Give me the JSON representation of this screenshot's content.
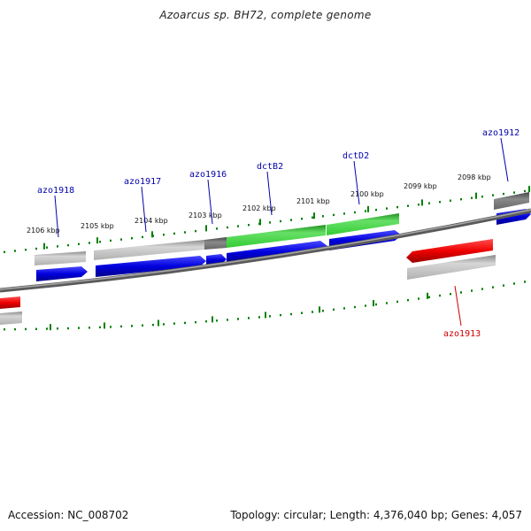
{
  "title": "Azoarcus sp. BH72, complete genome",
  "footer": {
    "accession": "Accession: NC_008702",
    "summary": "Topology: circular; Length: 4,376,040 bp; Genes: 4,057"
  },
  "colors": {
    "forward_gene": "#0000dd",
    "reverse_gene": "#ee0000",
    "green_feature": "#33cc33",
    "grey_feature": "#b0b0b0",
    "dark_grey_feature": "#707070",
    "tick": "#008000",
    "backbone": "#8a8a8a",
    "forward_label": "#0000aa",
    "reverse_label": "#cc0000"
  },
  "kbp_ticks": [
    {
      "label": "2106 kbp"
    },
    {
      "label": "2105 kbp"
    },
    {
      "label": "2104 kbp"
    },
    {
      "label": "2103 kbp"
    },
    {
      "label": "2102 kbp"
    },
    {
      "label": "2101 kbp"
    },
    {
      "label": "2100 kbp"
    },
    {
      "label": "2099 kbp"
    },
    {
      "label": "2098 kbp"
    }
  ],
  "gene_labels": [
    {
      "name": "azo1918",
      "strand": "forward"
    },
    {
      "name": "azo1917",
      "strand": "forward"
    },
    {
      "name": "azo1916",
      "strand": "forward"
    },
    {
      "name": "dctB2",
      "strand": "forward"
    },
    {
      "name": "dctD2",
      "strand": "forward"
    },
    {
      "name": "azo1912",
      "strand": "forward"
    },
    {
      "name": "azo1913",
      "strand": "reverse"
    }
  ]
}
